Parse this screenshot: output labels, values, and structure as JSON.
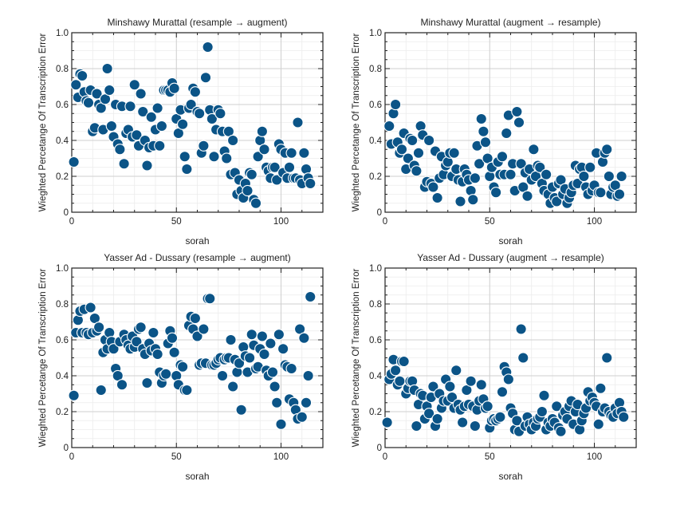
{
  "colors": {
    "point": "#0b5487",
    "grid_major": "#cfcfcf",
    "grid_minor": "#ececec",
    "axis": "#222222"
  },
  "chart_data": [
    {
      "type": "scatter",
      "title": "Minshawy Murattal (resample → augment)",
      "xlabel": "sorah",
      "ylabel": "Wieghted Percetange Of Transcription Error",
      "xlim": [
        0,
        120
      ],
      "ylim": [
        0,
        1.0
      ],
      "xticks": [
        0,
        50,
        100
      ],
      "yticks": [
        0,
        0.2,
        0.4,
        0.6,
        0.8,
        1.0
      ],
      "tick_labels_x": [
        "0",
        "50",
        "100"
      ],
      "tick_labels_y": [
        "0",
        "0.2",
        "0.4",
        "0.6",
        "0.8",
        "1.0"
      ],
      "series": [
        {
          "name": "points",
          "x": [
            1,
            2,
            3,
            4,
            5,
            6,
            7,
            8,
            9,
            10,
            11,
            12,
            13,
            14,
            15,
            16,
            17,
            18,
            19,
            20,
            21,
            22,
            23,
            24,
            25,
            26,
            27,
            28,
            29,
            30,
            31,
            32,
            33,
            34,
            35,
            36,
            37,
            38,
            39,
            40,
            41,
            42,
            43,
            44,
            45,
            46,
            47,
            48,
            49,
            50,
            51,
            52,
            53,
            54,
            55,
            56,
            57,
            58,
            59,
            60,
            61,
            62,
            63,
            64,
            65,
            66,
            67,
            68,
            69,
            70,
            71,
            72,
            73,
            74,
            75,
            76,
            77,
            78,
            79,
            80,
            81,
            82,
            83,
            84,
            85,
            86,
            87,
            88,
            89,
            90,
            91,
            92,
            93,
            94,
            95,
            96,
            97,
            98,
            99,
            100,
            101,
            102,
            103,
            104,
            105,
            106,
            107,
            108,
            109,
            110,
            111,
            112,
            113,
            114
          ],
          "y": [
            0.28,
            0.71,
            0.64,
            0.77,
            0.76,
            0.67,
            0.62,
            0.61,
            0.68,
            0.45,
            0.47,
            0.66,
            0.6,
            0.58,
            0.46,
            0.63,
            0.8,
            0.68,
            0.48,
            0.42,
            0.6,
            0.38,
            0.35,
            0.59,
            0.27,
            0.44,
            0.46,
            0.59,
            0.42,
            0.71,
            0.43,
            0.37,
            0.66,
            0.56,
            0.4,
            0.26,
            0.36,
            0.53,
            0.37,
            0.46,
            0.58,
            0.37,
            0.48,
            0.68,
            0.68,
            0.68,
            0.67,
            0.72,
            0.69,
            0.52,
            0.44,
            0.57,
            0.49,
            0.31,
            0.24,
            0.58,
            0.6,
            0.69,
            0.67,
            0.56,
            0.55,
            0.33,
            0.37,
            0.75,
            0.92,
            0.57,
            0.52,
            0.31,
            0.46,
            0.57,
            0.55,
            0.45,
            0.34,
            0.3,
            0.45,
            0.21,
            0.4,
            0.22,
            0.1,
            0.18,
            0.12,
            0.08,
            0.16,
            0.12,
            0.22,
            0.21,
            0.07,
            0.05,
            0.31,
            0.4,
            0.45,
            0.35,
            0.25,
            0.23,
            0.19,
            0.25,
            0.25,
            0.18,
            0.38,
            0.35,
            0.22,
            0.33,
            0.19,
            0.25,
            0.33,
            0.19,
            0.19,
            0.5,
            0.18,
            0.16,
            0.33,
            0.24,
            0.19,
            0.16
          ]
        }
      ]
    },
    {
      "type": "scatter",
      "title": "Minshawy Murattal (augment → resample)",
      "xlabel": "sorah",
      "ylabel": "Wieghted Percetange Of Transcription Error",
      "xlim": [
        0,
        120
      ],
      "ylim": [
        0,
        1.0
      ],
      "xticks": [
        0,
        50,
        100
      ],
      "yticks": [
        0,
        0.2,
        0.4,
        0.6,
        0.8,
        1.0
      ],
      "tick_labels_x": [
        "0",
        "50",
        "100"
      ],
      "tick_labels_y": [
        "0",
        "0.2",
        "0.4",
        "0.6",
        "0.8",
        "1.0"
      ],
      "series": [
        {
          "name": "points",
          "x": [
            2,
            3,
            4,
            5,
            6,
            7,
            8,
            9,
            10,
            11,
            12,
            13,
            14,
            15,
            16,
            17,
            18,
            19,
            20,
            21,
            22,
            23,
            24,
            25,
            26,
            27,
            28,
            29,
            30,
            31,
            32,
            33,
            34,
            35,
            36,
            37,
            38,
            39,
            40,
            41,
            42,
            43,
            44,
            45,
            46,
            47,
            48,
            49,
            50,
            51,
            52,
            53,
            54,
            55,
            56,
            57,
            58,
            59,
            60,
            61,
            62,
            63,
            64,
            65,
            66,
            67,
            68,
            69,
            70,
            71,
            72,
            73,
            74,
            75,
            76,
            77,
            78,
            79,
            80,
            81,
            82,
            83,
            84,
            85,
            86,
            87,
            88,
            89,
            90,
            91,
            92,
            93,
            94,
            95,
            96,
            97,
            98,
            99,
            100,
            101,
            102,
            103,
            104,
            105,
            106,
            107,
            108,
            109,
            110,
            111,
            112,
            113
          ],
          "y": [
            0.48,
            0.38,
            0.55,
            0.6,
            0.39,
            0.33,
            0.35,
            0.44,
            0.24,
            0.3,
            0.41,
            0.4,
            0.26,
            0.23,
            0.33,
            0.48,
            0.43,
            0.14,
            0.17,
            0.4,
            0.16,
            0.14,
            0.34,
            0.08,
            0.19,
            0.31,
            0.21,
            0.26,
            0.28,
            0.33,
            0.2,
            0.33,
            0.24,
            0.18,
            0.06,
            0.17,
            0.24,
            0.21,
            0.18,
            0.12,
            0.07,
            0.19,
            0.37,
            0.27,
            0.52,
            0.45,
            0.39,
            0.3,
            0.2,
            0.25,
            0.14,
            0.11,
            0.28,
            0.21,
            0.31,
            0.21,
            0.44,
            0.54,
            0.21,
            0.27,
            0.12,
            0.56,
            0.5,
            0.27,
            0.14,
            0.22,
            0.09,
            0.24,
            0.18,
            0.35,
            0.2,
            0.26,
            0.25,
            0.16,
            0.12,
            0.21,
            0.1,
            0.05,
            0.14,
            0.08,
            0.06,
            0.16,
            0.18,
            0.1,
            0.13,
            0.05,
            0.08,
            0.11,
            0.15,
            0.26,
            0.16,
            0.24,
            0.25,
            0.2,
            0.14,
            0.1,
            0.25,
            0.12,
            0.15,
            0.33,
            0.11,
            0.11,
            0.28,
            0.33,
            0.35,
            0.2,
            0.1,
            0.14,
            0.15,
            0.09,
            0.1,
            0.2
          ]
        }
      ]
    },
    {
      "type": "scatter",
      "title": "Yasser Ad - Dussary (resample → augment)",
      "xlabel": "sorah",
      "ylabel": "Wieghted Percetange Of Transcription Error",
      "xlim": [
        0,
        120
      ],
      "ylim": [
        0,
        1.0
      ],
      "xticks": [
        0,
        50,
        100
      ],
      "yticks": [
        0,
        0.2,
        0.4,
        0.6,
        0.8,
        1.0
      ],
      "tick_labels_x": [
        "0",
        "50",
        "100"
      ],
      "tick_labels_y": [
        "0",
        "0.2",
        "0.4",
        "0.6",
        "0.8",
        "1.0"
      ],
      "series": [
        {
          "name": "points",
          "x": [
            1,
            2,
            3,
            4,
            5,
            6,
            7,
            8,
            9,
            10,
            11,
            12,
            13,
            14,
            15,
            16,
            17,
            18,
            19,
            20,
            21,
            22,
            23,
            24,
            25,
            26,
            27,
            28,
            29,
            30,
            31,
            32,
            33,
            34,
            35,
            36,
            37,
            38,
            39,
            40,
            41,
            42,
            43,
            44,
            45,
            46,
            47,
            48,
            49,
            50,
            51,
            52,
            53,
            54,
            55,
            56,
            57,
            58,
            59,
            60,
            61,
            62,
            63,
            64,
            65,
            66,
            67,
            68,
            69,
            70,
            71,
            72,
            73,
            74,
            75,
            76,
            77,
            78,
            79,
            80,
            81,
            82,
            83,
            84,
            85,
            86,
            87,
            88,
            89,
            90,
            91,
            92,
            93,
            94,
            95,
            96,
            97,
            98,
            99,
            100,
            101,
            102,
            103,
            104,
            105,
            106,
            107,
            108,
            109,
            110,
            111,
            112,
            113,
            114
          ],
          "y": [
            0.29,
            0.64,
            0.71,
            0.76,
            0.64,
            0.77,
            0.64,
            0.63,
            0.78,
            0.64,
            0.72,
            0.65,
            0.67,
            0.32,
            0.53,
            0.6,
            0.55,
            0.64,
            0.59,
            0.55,
            0.44,
            0.4,
            0.59,
            0.35,
            0.63,
            0.6,
            0.57,
            0.55,
            0.62,
            0.56,
            0.59,
            0.66,
            0.67,
            0.55,
            0.52,
            0.36,
            0.58,
            0.54,
            0.64,
            0.55,
            0.52,
            0.42,
            0.36,
            0.4,
            0.41,
            0.58,
            0.65,
            0.61,
            0.53,
            0.4,
            0.35,
            0.46,
            0.45,
            0.32,
            0.32,
            0.68,
            0.73,
            0.66,
            0.72,
            0.62,
            0.46,
            0.47,
            0.66,
            0.47,
            0.83,
            0.83,
            0.46,
            0.46,
            0.47,
            0.49,
            0.5,
            0.4,
            0.49,
            0.5,
            0.5,
            0.6,
            0.34,
            0.49,
            0.42,
            0.47,
            0.21,
            0.56,
            0.51,
            0.42,
            0.5,
            0.63,
            0.57,
            0.44,
            0.45,
            0.55,
            0.62,
            0.52,
            0.43,
            0.4,
            0.58,
            0.42,
            0.34,
            0.25,
            0.63,
            0.13,
            0.55,
            0.46,
            0.45,
            0.27,
            0.44,
            0.25,
            0.21,
            0.16,
            0.66,
            0.17,
            0.61,
            0.25,
            0.4,
            0.84
          ]
        }
      ]
    },
    {
      "type": "scatter",
      "title": "Yasser Ad - Dussary (augment → resample)",
      "xlabel": "sorah",
      "ylabel": "Wieghted Percetange Of Transcription Error",
      "xlim": [
        0,
        120
      ],
      "ylim": [
        0,
        1.0
      ],
      "xticks": [
        0,
        50,
        100
      ],
      "yticks": [
        0,
        0.2,
        0.4,
        0.6,
        0.8,
        1.0
      ],
      "tick_labels_x": [
        "0",
        "50",
        "100"
      ],
      "tick_labels_y": [
        "0",
        "0.2",
        "0.4",
        "0.6",
        "0.8",
        "1.0"
      ],
      "series": [
        {
          "name": "points",
          "x": [
            1,
            2,
            3,
            4,
            5,
            6,
            7,
            8,
            9,
            10,
            11,
            12,
            13,
            14,
            15,
            16,
            17,
            18,
            19,
            20,
            21,
            22,
            23,
            24,
            25,
            26,
            27,
            28,
            29,
            30,
            31,
            32,
            33,
            34,
            35,
            36,
            37,
            38,
            39,
            40,
            41,
            42,
            43,
            44,
            45,
            46,
            47,
            48,
            49,
            50,
            51,
            52,
            53,
            54,
            55,
            56,
            57,
            58,
            59,
            60,
            61,
            62,
            63,
            64,
            65,
            66,
            67,
            68,
            69,
            70,
            71,
            72,
            73,
            74,
            75,
            76,
            77,
            78,
            79,
            80,
            81,
            82,
            83,
            84,
            85,
            86,
            87,
            88,
            89,
            90,
            91,
            92,
            93,
            94,
            95,
            96,
            97,
            98,
            99,
            100,
            101,
            102,
            103,
            104,
            105,
            106,
            107,
            108,
            109,
            110,
            111,
            112,
            113,
            114
          ],
          "y": [
            0.14,
            0.38,
            0.41,
            0.49,
            0.43,
            0.35,
            0.37,
            0.48,
            0.48,
            0.3,
            0.33,
            0.37,
            0.37,
            0.32,
            0.12,
            0.24,
            0.3,
            0.29,
            0.16,
            0.23,
            0.19,
            0.28,
            0.34,
            0.12,
            0.16,
            0.3,
            0.22,
            0.26,
            0.38,
            0.26,
            0.34,
            0.28,
            0.22,
            0.43,
            0.24,
            0.21,
            0.14,
            0.23,
            0.32,
            0.24,
            0.37,
            0.23,
            0.12,
            0.21,
            0.26,
            0.35,
            0.27,
            0.22,
            0.23,
            0.11,
            0.15,
            0.16,
            0.15,
            0.16,
            0.17,
            0.31,
            0.45,
            0.42,
            0.38,
            0.22,
            0.19,
            0.1,
            0.15,
            0.09,
            0.66,
            0.5,
            0.12,
            0.17,
            0.13,
            0.1,
            0.14,
            0.12,
            0.16,
            0.17,
            0.2,
            0.29,
            0.1,
            0.14,
            0.12,
            0.16,
            0.14,
            0.23,
            0.11,
            0.09,
            0.18,
            0.2,
            0.16,
            0.23,
            0.26,
            0.13,
            0.2,
            0.24,
            0.1,
            0.15,
            0.19,
            0.22,
            0.31,
            0.26,
            0.28,
            0.25,
            0.23,
            0.13,
            0.33,
            0.2,
            0.22,
            0.5,
            0.2,
            0.18,
            0.17,
            0.22,
            0.19,
            0.25,
            0.2,
            0.17
          ]
        }
      ]
    }
  ]
}
